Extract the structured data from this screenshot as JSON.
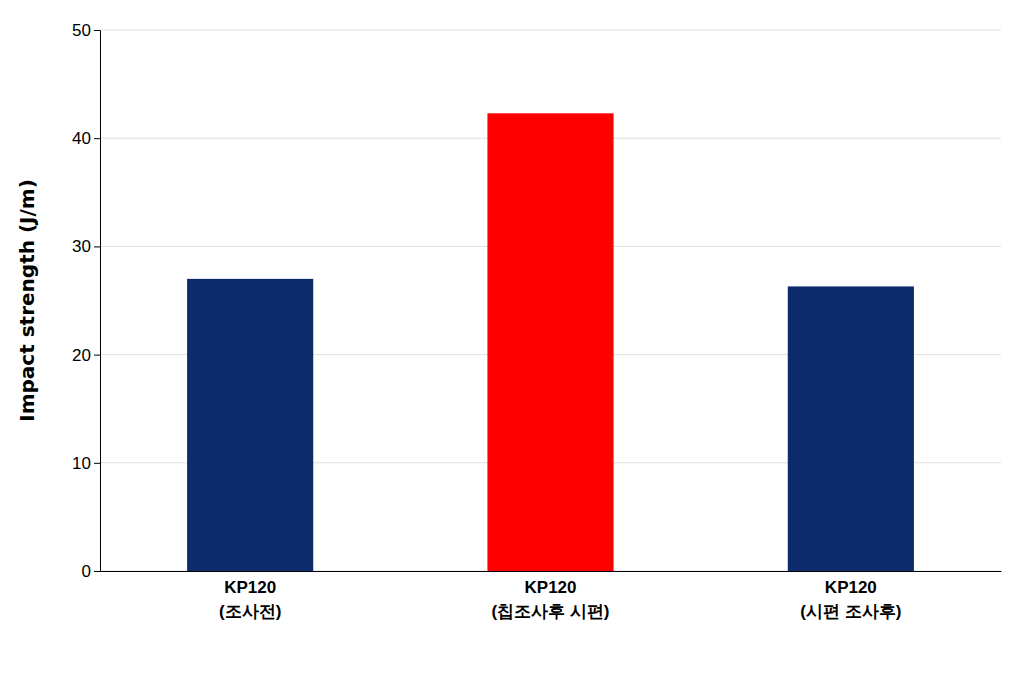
{
  "chart_data": {
    "type": "bar",
    "categories": [
      "KP120\n(조사전)",
      "KP120\n(칩조사후 시편)",
      "KP120\n(시편 조사후)"
    ],
    "values": [
      27.0,
      42.3,
      26.3
    ],
    "colors": [
      "#0d2b6b",
      "#ff0000",
      "#0d2b6b"
    ],
    "ylabel": "Impact strength (J/m)",
    "ylim": [
      0,
      50
    ],
    "yticks": [
      0,
      10,
      20,
      30,
      40,
      50
    ],
    "grid": true
  }
}
